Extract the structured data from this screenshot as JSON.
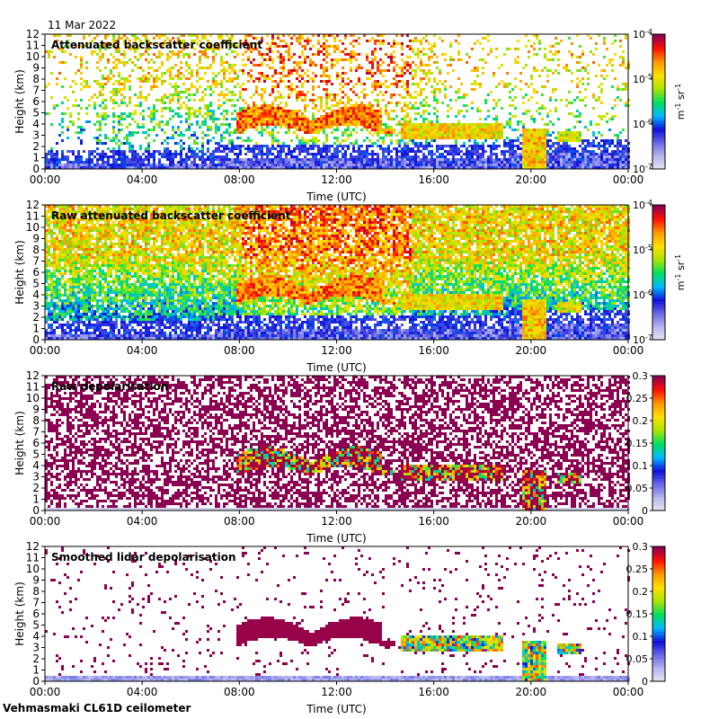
{
  "header": {
    "date": "11 Mar 2022"
  },
  "footer": {
    "site": "Vehmasmaki CL61D ceilometer"
  },
  "chart_data": [
    {
      "type": "heatmap",
      "title": "Attenuated backscatter coefficient",
      "xlabel": "Time (UTC)",
      "ylabel": "Height (km)",
      "x_ticks": [
        "00:00",
        "04:00",
        "08:00",
        "12:00",
        "16:00",
        "20:00",
        "00:00"
      ],
      "y_ticks": [
        "0",
        "1",
        "2",
        "3",
        "4",
        "5",
        "6",
        "7",
        "8",
        "9",
        "10",
        "11",
        "12"
      ],
      "ylim": [
        0,
        12
      ],
      "colorbar": {
        "scale": "log",
        "ticks": [
          {
            "base": "10",
            "exp": "-4"
          },
          {
            "base": "10",
            "exp": "-5"
          },
          {
            "base": "10",
            "exp": "-6"
          },
          {
            "base": "10",
            "exp": "-7"
          }
        ],
        "unit": {
          "m": "m",
          "m_exp": "-1",
          "sr": "sr",
          "sr_exp": "-1"
        }
      },
      "variant": "smooth_backscatter"
    },
    {
      "type": "heatmap",
      "title": "Raw attenuated backscatter coefficient",
      "xlabel": "Time (UTC)",
      "ylabel": "Height (km)",
      "x_ticks": [
        "00:00",
        "04:00",
        "08:00",
        "12:00",
        "16:00",
        "20:00",
        "00:00"
      ],
      "y_ticks": [
        "0",
        "1",
        "2",
        "3",
        "4",
        "5",
        "6",
        "7",
        "8",
        "9",
        "10",
        "11",
        "12"
      ],
      "ylim": [
        0,
        12
      ],
      "colorbar": {
        "scale": "log",
        "ticks": [
          {
            "base": "10",
            "exp": "-4"
          },
          {
            "base": "10",
            "exp": "-5"
          },
          {
            "base": "10",
            "exp": "-6"
          },
          {
            "base": "10",
            "exp": "-7"
          }
        ],
        "unit": {
          "m": "m",
          "m_exp": "-1",
          "sr": "sr",
          "sr_exp": "-1"
        }
      },
      "variant": "raw_backscatter"
    },
    {
      "type": "heatmap",
      "title": "Raw depolarisation",
      "xlabel": "Time (UTC)",
      "ylabel": "Height (km)",
      "x_ticks": [
        "00:00",
        "04:00",
        "08:00",
        "12:00",
        "16:00",
        "20:00",
        "00:00"
      ],
      "y_ticks": [
        "0",
        "1",
        "2",
        "3",
        "4",
        "5",
        "6",
        "7",
        "8",
        "9",
        "10",
        "11",
        "12"
      ],
      "ylim": [
        0,
        12
      ],
      "colorbar": {
        "scale": "linear",
        "ticks": [
          "0.3",
          "0.25",
          "0.2",
          "0.15",
          "0.1",
          "0.05",
          "0"
        ],
        "range": [
          0,
          0.3
        ]
      },
      "variant": "raw_depol"
    },
    {
      "type": "heatmap",
      "title": "Smoothed lidar depolarisation",
      "xlabel": "Time (UTC)",
      "ylabel": "Height (km)",
      "x_ticks": [
        "00:00",
        "04:00",
        "08:00",
        "12:00",
        "16:00",
        "20:00",
        "00:00"
      ],
      "y_ticks": [
        "0",
        "1",
        "2",
        "3",
        "4",
        "5",
        "6",
        "7",
        "8",
        "9",
        "10",
        "11",
        "12"
      ],
      "ylim": [
        0,
        12
      ],
      "colorbar": {
        "scale": "linear",
        "ticks": [
          "0.3",
          "0.25",
          "0.2",
          "0.15",
          "0.1",
          "0.05",
          "0"
        ],
        "range": [
          0,
          0.3
        ]
      },
      "variant": "smooth_depol"
    }
  ],
  "colors": {
    "colormap": [
      "#e8e8f0",
      "#b8b8ee",
      "#6a6ae6",
      "#1010d8",
      "#00b8ff",
      "#00e060",
      "#a8e400",
      "#ffe000",
      "#ff9a00",
      "#ff1000",
      "#8b0050"
    ]
  }
}
